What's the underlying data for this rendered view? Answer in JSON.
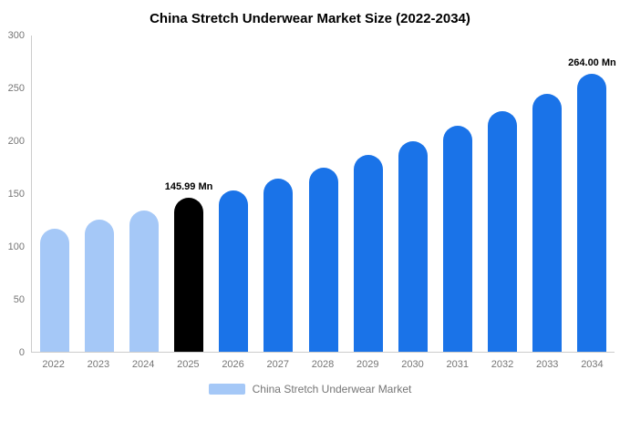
{
  "title": "China Stretch Underwear Market Size (2022-2034)",
  "legend": {
    "label": "China Stretch Underwear Market",
    "swatch_color": "#a5c8f7"
  },
  "colors": {
    "light_blue": "#a5c8f7",
    "blue": "#1a73e8",
    "black": "#000000",
    "axis": "#cccccc",
    "tick_text": "#757575"
  },
  "chart_data": {
    "type": "bar",
    "title": "China Stretch Underwear Market Size (2022-2034)",
    "categories": [
      "2022",
      "2023",
      "2024",
      "2025",
      "2026",
      "2027",
      "2028",
      "2029",
      "2030",
      "2031",
      "2032",
      "2033",
      "2034"
    ],
    "values": [
      117,
      125,
      134,
      145.99,
      153,
      164,
      175,
      187,
      200,
      214,
      228,
      245,
      264
    ],
    "bar_colors": [
      "#a5c8f7",
      "#a5c8f7",
      "#a5c8f7",
      "#000000",
      "#1a73e8",
      "#1a73e8",
      "#1a73e8",
      "#1a73e8",
      "#1a73e8",
      "#1a73e8",
      "#1a73e8",
      "#1a73e8",
      "#1a73e8"
    ],
    "annotations": [
      {
        "index": 3,
        "text": "145.99 Mn"
      },
      {
        "index": 12,
        "text": "264.00 Mn"
      }
    ],
    "xlabel": "",
    "ylabel": "",
    "ylim": [
      0,
      300
    ],
    "yticks": [
      0,
      50,
      100,
      150,
      200,
      250,
      300
    ],
    "grid": false,
    "legend_position": "bottom"
  }
}
